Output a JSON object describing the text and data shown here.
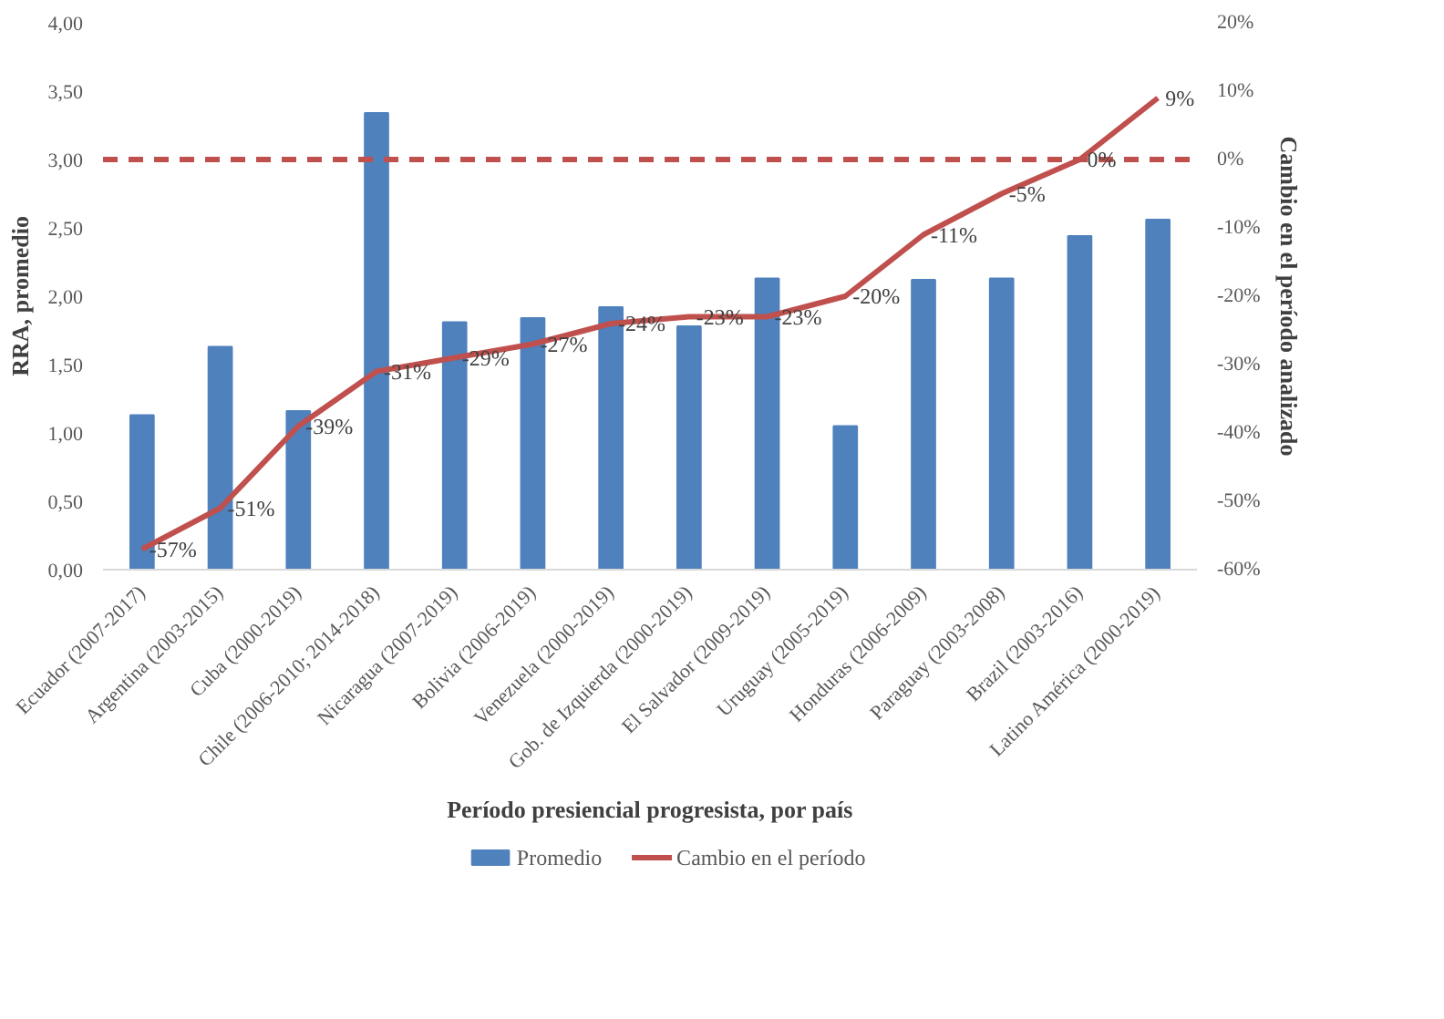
{
  "chart_data": {
    "type": "bar",
    "xlabel": "Período presiencial progresista, por país",
    "ylabel": "RRA, promedio",
    "y2label": "Cambio en el período analizado",
    "categories": [
      "Ecuador (2007-2017)",
      "Argentina (2003-2015)",
      "Cuba (2000-2019)",
      "Chile (2006-2010; 2014-2018)",
      "Nicaragua (2007-2019)",
      "Bolivia (2006-2019)",
      "Venezuela (2000-2019)",
      "Gob. de Izquierda (2000-2019)",
      "El Salvador (2009-2019)",
      "Uruguay (2005-2019)",
      "Honduras (2006-2009)",
      "Paraguay (2003-2008)",
      "Brazil (2003-2016)",
      "Latino América (2000-2019)"
    ],
    "series": [
      {
        "name": "Promedio",
        "color": "#4f81bd",
        "values": [
          1.13,
          1.63,
          1.16,
          3.34,
          1.81,
          1.84,
          1.92,
          1.78,
          2.13,
          1.05,
          2.12,
          2.13,
          2.44,
          2.56
        ]
      },
      {
        "name": "Cambio en el período",
        "type": "line",
        "axis": "y2",
        "color": "#c0504d",
        "data_labels": true,
        "value_labels": [
          "-57%",
          "-51%",
          "-39%",
          "-31%",
          "-29%",
          "-27%",
          "-24%",
          "-23%",
          "-23%",
          "-20%",
          "-11%",
          "-5%",
          "0%",
          "9%"
        ],
        "values": [
          -57,
          -51,
          -39,
          -31,
          -29,
          -27,
          -24,
          -23,
          -23,
          -20,
          -11,
          -5,
          0,
          9
        ]
      }
    ],
    "ylim": [
      0,
      4
    ],
    "yticks": [
      {
        "value": 0,
        "label": "0,00"
      },
      {
        "value": 0.5,
        "label": "0,50"
      },
      {
        "value": 1,
        "label": "1,00"
      },
      {
        "value": 1.5,
        "label": "1,50"
      },
      {
        "value": 2,
        "label": "2,00"
      },
      {
        "value": 2.5,
        "label": "2,50"
      },
      {
        "value": 3,
        "label": "3,00"
      },
      {
        "value": 3.5,
        "label": "3,50"
      },
      {
        "value": 4,
        "label": "4,00"
      }
    ],
    "y2lim": [
      -60,
      20
    ],
    "y2ticks": [
      {
        "value": -60,
        "label": "-60%"
      },
      {
        "value": -50,
        "label": "-50%"
      },
      {
        "value": -40,
        "label": "-40%"
      },
      {
        "value": -30,
        "label": "-30%"
      },
      {
        "value": -20,
        "label": "-20%"
      },
      {
        "value": -10,
        "label": "-10%"
      },
      {
        "value": 0,
        "label": "0%"
      },
      {
        "value": 10,
        "label": "10%"
      },
      {
        "value": 20,
        "label": "20%"
      }
    ],
    "ref_lines": [
      {
        "axis": "y2",
        "value": 0,
        "color": "#c0504d",
        "line_style": "dashed"
      }
    ],
    "grid": false,
    "legend": "bottom"
  }
}
